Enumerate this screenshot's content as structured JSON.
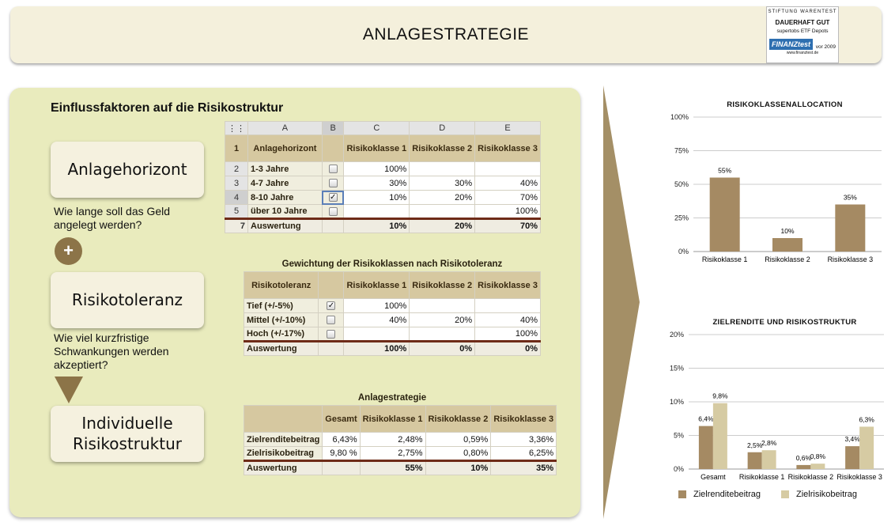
{
  "header": {
    "title": "ANLAGESTRATEGIE"
  },
  "badge": {
    "line1": "STIFTUNG WARENTEST",
    "line2": "DAUERHAFT GUT",
    "line3": "supertobs ETF Depots",
    "logo": "FINANZtest",
    "note": "vor 2009",
    "url": "www.finanztest.de"
  },
  "panel": {
    "title": "Einflussfaktoren auf die Risikostruktur"
  },
  "steps": {
    "card1": "Anlagehorizont",
    "q1": "Wie lange soll das Geld angelegt werden?",
    "card2": "Risikotoleranz",
    "q2": "Wie viel kurzfristige Schwankungen werden akzeptiert?",
    "card3": "Individuelle Risikostruktur",
    "plus": "+"
  },
  "table1": {
    "col_letters": [
      "A",
      "B",
      "C",
      "D",
      "E"
    ],
    "row_numbers": [
      "1",
      "2",
      "3",
      "4",
      "5",
      "7"
    ],
    "head": [
      "Anlagehorizont",
      "",
      "Risikoklasse 1",
      "Risikoklasse 2",
      "Risikoklasse 3"
    ],
    "rows": [
      {
        "label": "1-3 Jahre",
        "checked": false,
        "c": "100%",
        "d": "",
        "e": ""
      },
      {
        "label": "4-7 Jahre",
        "checked": false,
        "c": "30%",
        "d": "30%",
        "e": "40%"
      },
      {
        "label": "8-10 Jahre",
        "checked": true,
        "c": "10%",
        "d": "20%",
        "e": "70%"
      },
      {
        "label": "über 10 Jahre",
        "checked": false,
        "c": "",
        "d": "",
        "e": "100%"
      }
    ],
    "foot": {
      "label": "Auswertung",
      "c": "10%",
      "d": "20%",
      "e": "70%"
    }
  },
  "table2": {
    "caption": "Gewichtung der Risikoklassen nach Risikotoleranz",
    "head": [
      "Risikotoleranz",
      "",
      "Risikoklasse 1",
      "Risikoklasse 2",
      "Risikoklasse 3"
    ],
    "rows": [
      {
        "label": "Tief (+/-5%)",
        "checked": true,
        "c": "100%",
        "d": "",
        "e": ""
      },
      {
        "label": "Mittel (+/-10%)",
        "checked": false,
        "c": "40%",
        "d": "20%",
        "e": "40%"
      },
      {
        "label": "Hoch (+/-17%)",
        "checked": false,
        "c": "",
        "d": "",
        "e": "100%"
      }
    ],
    "foot": {
      "label": "Auswertung",
      "c": "100%",
      "d": "0%",
      "e": "0%"
    }
  },
  "table3": {
    "caption": "Anlagestrategie",
    "head": [
      "",
      "Gesamt",
      "Risikoklasse 1",
      "Risikoklasse 2",
      "Risikoklasse 3"
    ],
    "rows": [
      {
        "label": "Zielrenditebeitrag",
        "b": "6,43%",
        "c": "2,48%",
        "d": "0,59%",
        "e": "3,36%"
      },
      {
        "label": "Zielrisikobeitrag",
        "b": "9,80 %",
        "c": "2,75%",
        "d": "0,80%",
        "e": "6,25%"
      }
    ],
    "foot": {
      "label": "Auswertung",
      "b": "",
      "c": "55%",
      "d": "10%",
      "e": "35%"
    }
  },
  "colors": {
    "series1": "#a58a63",
    "series2": "#d6cba3",
    "arrow": "#a48f66",
    "marker": "#8c7448"
  },
  "chart_data": [
    {
      "type": "bar",
      "title": "RISIKOKLASSENALLOCATION",
      "categories": [
        "Risikoklasse 1",
        "Risikoklasse 2",
        "Risikoklasse 3"
      ],
      "values": [
        55,
        10,
        35
      ],
      "value_labels": [
        "55%",
        "10%",
        "35%"
      ],
      "yticks": [
        "0%",
        "25%",
        "50%",
        "75%",
        "100%"
      ],
      "ylim": [
        0,
        100
      ],
      "grid": true
    },
    {
      "type": "bar",
      "title": "ZIELRENDITE UND RISIKOSTRUKTUR",
      "categories": [
        "Gesamt",
        "Risikoklasse 1",
        "Risikoklasse 2",
        "Risikoklasse 3"
      ],
      "series": [
        {
          "name": "Zielrenditebeitrag",
          "values": [
            6.4,
            2.5,
            0.6,
            3.4
          ],
          "labels": [
            "6,4%",
            "2,5%",
            "0,6%",
            "3,4%"
          ]
        },
        {
          "name": "Zielrisikobeitrag",
          "values": [
            9.8,
            2.8,
            0.8,
            6.3
          ],
          "labels": [
            "9,8%",
            "2,8%",
            "0,8%",
            "6,3%"
          ]
        }
      ],
      "yticks": [
        "0%",
        "5%",
        "10%",
        "15%",
        "20%"
      ],
      "ylim": [
        0,
        20
      ],
      "grid": true,
      "legend": "bottom"
    }
  ]
}
